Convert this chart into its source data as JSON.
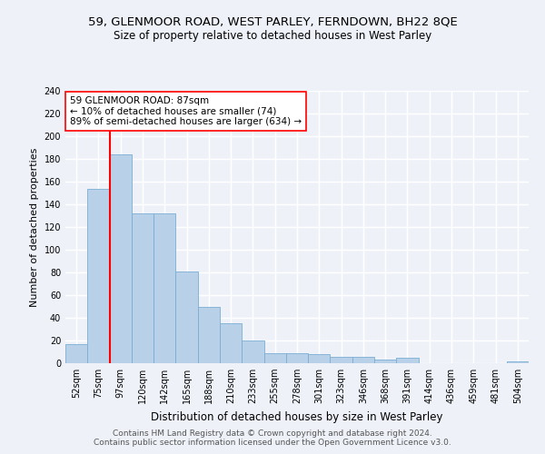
{
  "title1": "59, GLENMOOR ROAD, WEST PARLEY, FERNDOWN, BH22 8QE",
  "title2": "Size of property relative to detached houses in West Parley",
  "xlabel": "Distribution of detached houses by size in West Parley",
  "ylabel": "Number of detached properties",
  "bar_color": "#b8d0e8",
  "bar_edge_color": "#7aaed4",
  "categories": [
    "52sqm",
    "75sqm",
    "97sqm",
    "120sqm",
    "142sqm",
    "165sqm",
    "188sqm",
    "210sqm",
    "233sqm",
    "255sqm",
    "278sqm",
    "301sqm",
    "323sqm",
    "346sqm",
    "368sqm",
    "391sqm",
    "414sqm",
    "436sqm",
    "459sqm",
    "481sqm",
    "504sqm"
  ],
  "values": [
    17,
    154,
    184,
    132,
    132,
    81,
    50,
    35,
    20,
    9,
    9,
    8,
    6,
    6,
    3,
    5,
    0,
    0,
    0,
    0,
    2
  ],
  "ylim": [
    0,
    240
  ],
  "yticks": [
    0,
    20,
    40,
    60,
    80,
    100,
    120,
    140,
    160,
    180,
    200,
    220,
    240
  ],
  "vline_x": 1.52,
  "annotation_text_line1": "59 GLENMOOR ROAD: 87sqm",
  "annotation_text_line2": "← 10% of detached houses are smaller (74)",
  "annotation_text_line3": "89% of semi-detached houses are larger (634) →",
  "footer1": "Contains HM Land Registry data © Crown copyright and database right 2024.",
  "footer2": "Contains public sector information licensed under the Open Government Licence v3.0.",
  "background_color": "#eef2f8",
  "grid_color": "#ffffff",
  "title_fontsize": 9.5,
  "subtitle_fontsize": 8.5,
  "annotation_fontsize": 7.5,
  "footer_fontsize": 6.5,
  "ylabel_fontsize": 8,
  "xlabel_fontsize": 8.5,
  "tick_fontsize": 7
}
